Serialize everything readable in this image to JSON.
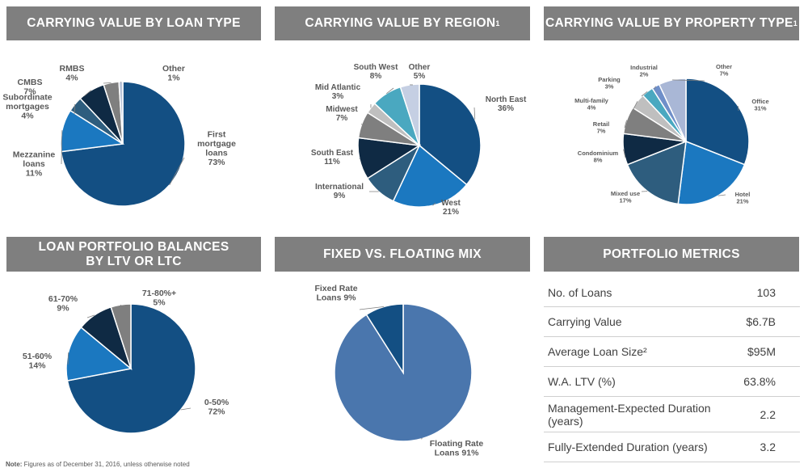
{
  "headers": {
    "loan_type": "CARRYING VALUE BY LOAN TYPE",
    "region": "CARRYING VALUE BY REGION",
    "region_sup": "1",
    "property": "CARRYING VALUE BY PROPERTY TYPE",
    "property_sup": "1",
    "ltv_line1": "LOAN PORTFOLIO BALANCES",
    "ltv_line2": "BY LTV OR LTC",
    "mix": "FIXED VS. FLOATING MIX",
    "metrics": "PORTFOLIO METRICS"
  },
  "chart_data": [
    {
      "id": "loan_type",
      "type": "pie",
      "title": "CARRYING VALUE BY LOAN TYPE",
      "slices": [
        {
          "label": [
            "First",
            "mortgage",
            "loans"
          ],
          "pct": "73%",
          "value": 73,
          "color": "#134f83"
        },
        {
          "label": [
            "Mezzanine",
            "loans"
          ],
          "pct": "11%",
          "value": 11,
          "color": "#1b78c0"
        },
        {
          "label": [
            "Subordinate",
            "mortgages"
          ],
          "pct": "4%",
          "value": 4,
          "color": "#2e5d7e"
        },
        {
          "label": [
            "CMBS"
          ],
          "pct": "7%",
          "value": 7,
          "color": "#0f2a44"
        },
        {
          "label": [
            "RMBS"
          ],
          "pct": "4%",
          "value": 4,
          "color": "#7f7f7f"
        },
        {
          "label": [
            "Other"
          ],
          "pct": "1%",
          "value": 1,
          "color": "#b9c4d8"
        }
      ]
    },
    {
      "id": "region",
      "type": "pie",
      "title": "CARRYING VALUE BY REGION",
      "slices": [
        {
          "label": [
            "North East"
          ],
          "pct": "36%",
          "value": 36,
          "color": "#134f83"
        },
        {
          "label": [
            "West"
          ],
          "pct": "21%",
          "value": 21,
          "color": "#1b78c0"
        },
        {
          "label": [
            "International"
          ],
          "pct": "9%",
          "value": 9,
          "color": "#2e5d7e"
        },
        {
          "label": [
            "South East"
          ],
          "pct": "11%",
          "value": 11,
          "color": "#0f2a44"
        },
        {
          "label": [
            "Midwest"
          ],
          "pct": "7%",
          "value": 7,
          "color": "#7f7f7f"
        },
        {
          "label": [
            "Mid Atlantic"
          ],
          "pct": "3%",
          "value": 3,
          "color": "#bfbfbf"
        },
        {
          "label": [
            "South West"
          ],
          "pct": "8%",
          "value": 8,
          "color": "#4aa8c0"
        },
        {
          "label": [
            "Other"
          ],
          "pct": "5%",
          "value": 5,
          "color": "#c5cfe3"
        }
      ]
    },
    {
      "id": "property",
      "type": "pie",
      "title": "CARRYING VALUE BY PROPERTY TYPE",
      "slices": [
        {
          "label": [
            "Office"
          ],
          "pct": "31%",
          "value": 31,
          "color": "#134f83"
        },
        {
          "label": [
            "Hotel"
          ],
          "pct": "21%",
          "value": 21,
          "color": "#1b78c0"
        },
        {
          "label": [
            "Mixed use"
          ],
          "pct": "17%",
          "value": 17,
          "color": "#2e5d7e"
        },
        {
          "label": [
            "Condominium"
          ],
          "pct": "8%",
          "value": 8,
          "color": "#0f2a44"
        },
        {
          "label": [
            "Retail"
          ],
          "pct": "7%",
          "value": 7,
          "color": "#7f7f7f"
        },
        {
          "label": [
            "Multi-family"
          ],
          "pct": "4%",
          "value": 4,
          "color": "#bfbfbf"
        },
        {
          "label": [
            "Parking"
          ],
          "pct": "3%",
          "value": 3,
          "color": "#4aa8c0"
        },
        {
          "label": [
            "Industrial"
          ],
          "pct": "2%",
          "value": 2,
          "color": "#6f8fc9"
        },
        {
          "label": [
            "Other"
          ],
          "pct": "7%",
          "value": 7,
          "color": "#a9b7d6"
        }
      ]
    },
    {
      "id": "ltv",
      "type": "pie",
      "title": "LOAN PORTFOLIO BALANCES BY LTV OR LTC",
      "slices": [
        {
          "label": [
            "0-50%"
          ],
          "pct": "72%",
          "value": 72,
          "color": "#134f83"
        },
        {
          "label": [
            "51-60%"
          ],
          "pct": "14%",
          "value": 14,
          "color": "#1b78c0"
        },
        {
          "label": [
            "61-70%"
          ],
          "pct": "9%",
          "value": 9,
          "color": "#0f2a44"
        },
        {
          "label": [
            "71-80%+"
          ],
          "pct": "5%",
          "value": 5,
          "color": "#7f7f7f"
        }
      ]
    },
    {
      "id": "mix",
      "type": "pie",
      "title": "FIXED VS. FLOATING MIX",
      "slices": [
        {
          "label": [
            "Floating Rate",
            "Loans 91%"
          ],
          "pct": "",
          "value": 91,
          "color": "#4a76ad"
        },
        {
          "label": [
            "Fixed Rate",
            "Loans 9%"
          ],
          "pct": "",
          "value": 9,
          "color": "#134f83"
        }
      ]
    }
  ],
  "metrics": [
    {
      "label": "No. of Loans",
      "value": "103"
    },
    {
      "label": "Carrying Value",
      "value": "$6.7B"
    },
    {
      "label": "Average Loan Size²",
      "value": "$95M"
    },
    {
      "label": "W.A. LTV (%)",
      "value": "63.8%"
    },
    {
      "label": "Management-Expected Duration (years)",
      "value": "2.2"
    },
    {
      "label": "Fully-Extended Duration (years)",
      "value": "3.2"
    }
  ],
  "note": {
    "bold": "Note:",
    "text": " Figures as of December 31, 2016, unless otherwise noted"
  }
}
